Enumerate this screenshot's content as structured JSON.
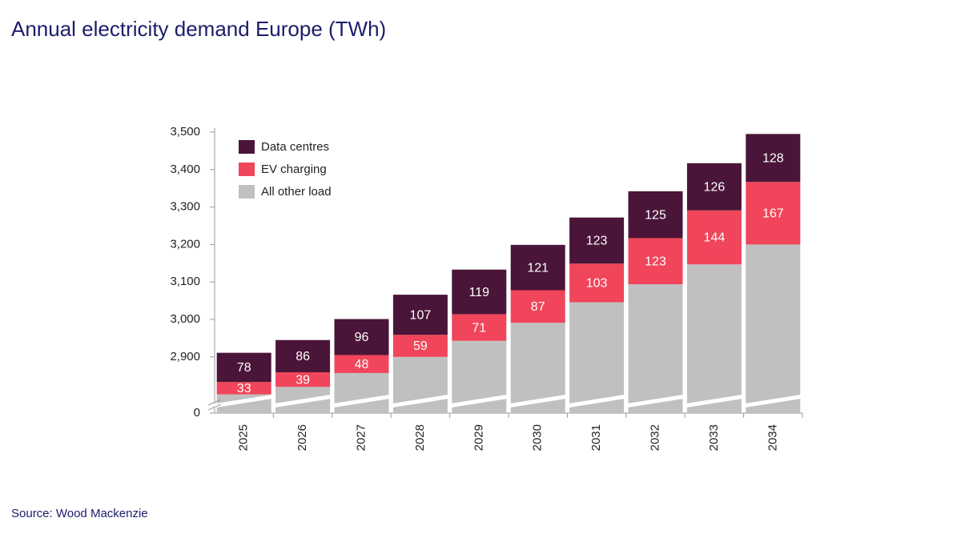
{
  "chart_data": {
    "type": "stacked_bar",
    "title": "Annual electricity demand Europe (TWh)",
    "source": "Source: Wood Mackenzie",
    "categories": [
      "2025",
      "2026",
      "2027",
      "2028",
      "2029",
      "2030",
      "2031",
      "2032",
      "2033",
      "2034"
    ],
    "series": [
      {
        "name": "All other load",
        "color": "#c0c0c0",
        "data_labels": false,
        "values": [
          2800,
          2820,
          2857,
          2900,
          2943,
          2991,
          3046,
          3094,
          3147,
          3200
        ]
      },
      {
        "name": "EV charging",
        "color": "#f0455a",
        "data_labels": true,
        "values": [
          33,
          39,
          48,
          59,
          71,
          87,
          103,
          123,
          144,
          167
        ]
      },
      {
        "name": "Data centres",
        "color": "#4a1538",
        "data_labels": true,
        "values": [
          78,
          86,
          96,
          107,
          119,
          121,
          123,
          125,
          126,
          128
        ]
      }
    ],
    "ylim": [
      0,
      3500
    ],
    "axis_break": [
      0,
      2750
    ],
    "yticks": [
      0,
      {
        "value": 2900,
        "label": "2,900"
      },
      {
        "value": 3000,
        "label": "3,000"
      },
      {
        "value": 3100,
        "label": "3,100"
      },
      {
        "value": 3200,
        "label": "3,200"
      },
      {
        "value": 3300,
        "label": "3,300"
      },
      {
        "value": 3400,
        "label": "3,400"
      },
      {
        "value": 3500,
        "label": "3,500"
      }
    ],
    "legend": "upper left",
    "grid": false
  }
}
